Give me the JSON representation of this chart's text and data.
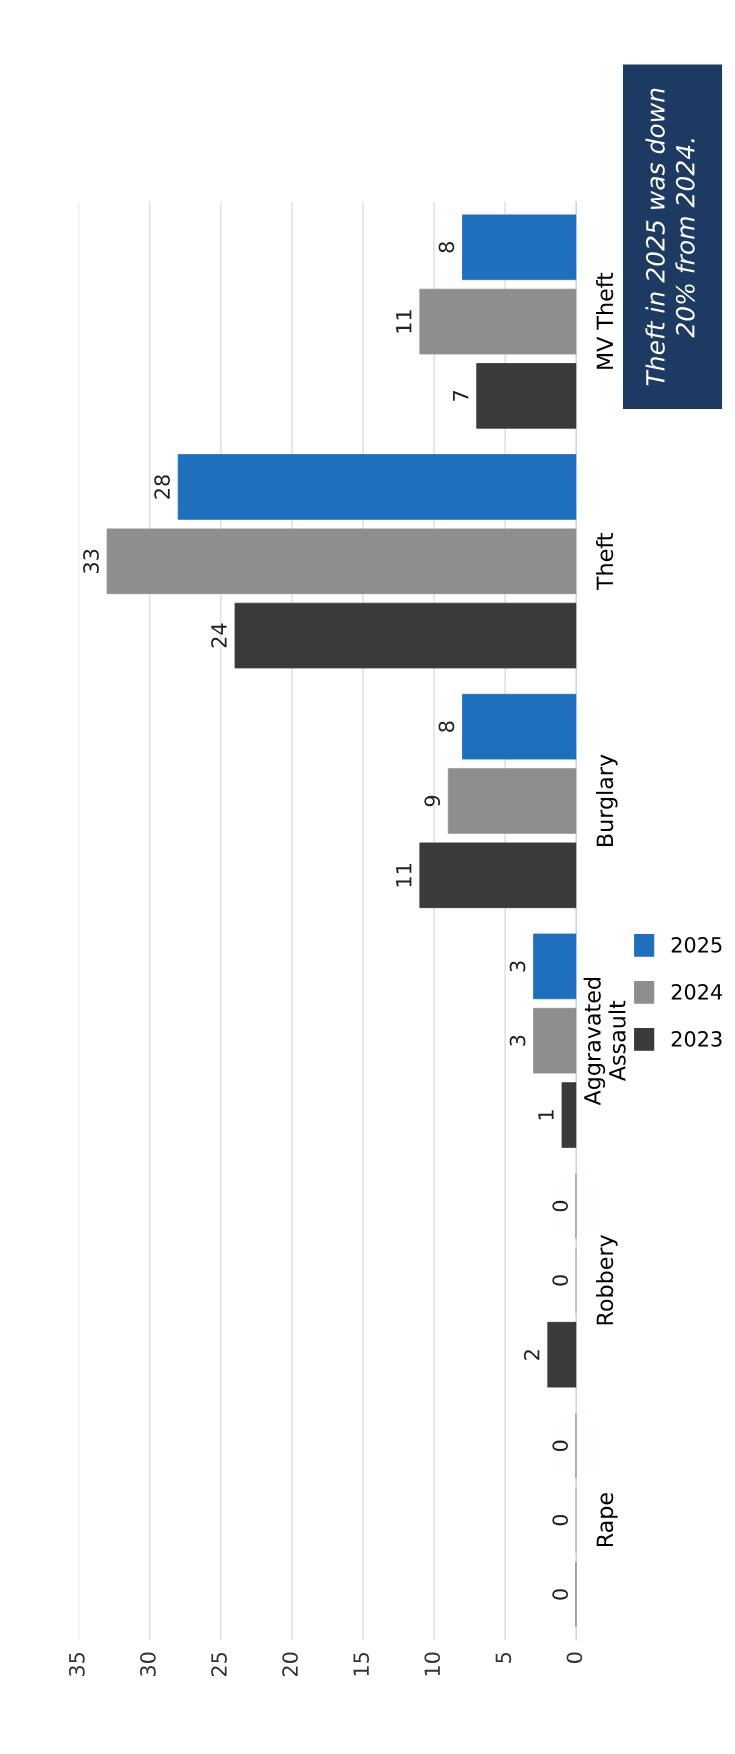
{
  "chart_data": {
    "type": "bar",
    "orientation": "horizontal",
    "categories": [
      "MV Theft",
      "Theft",
      "Burglary",
      "Aggravated\nAssault",
      "Robbery",
      "Rape"
    ],
    "series": [
      {
        "name": "2023",
        "color": "#3a3a3a",
        "values": [
          7,
          24,
          11,
          1,
          2,
          0
        ]
      },
      {
        "name": "2024",
        "color": "#8e8e8e",
        "values": [
          11,
          33,
          9,
          3,
          0,
          0
        ]
      },
      {
        "name": "2025",
        "color": "#1f6fbf",
        "values": [
          8,
          28,
          8,
          3,
          0,
          0
        ]
      }
    ],
    "xlim": [
      35,
      0
    ],
    "xticks": [
      0,
      5,
      10,
      15,
      20,
      25,
      30,
      35
    ],
    "grid": "x",
    "legend": "right",
    "data_labels": true,
    "annotations": [
      "Theft in 2025 was down\n20% from 2024."
    ]
  }
}
